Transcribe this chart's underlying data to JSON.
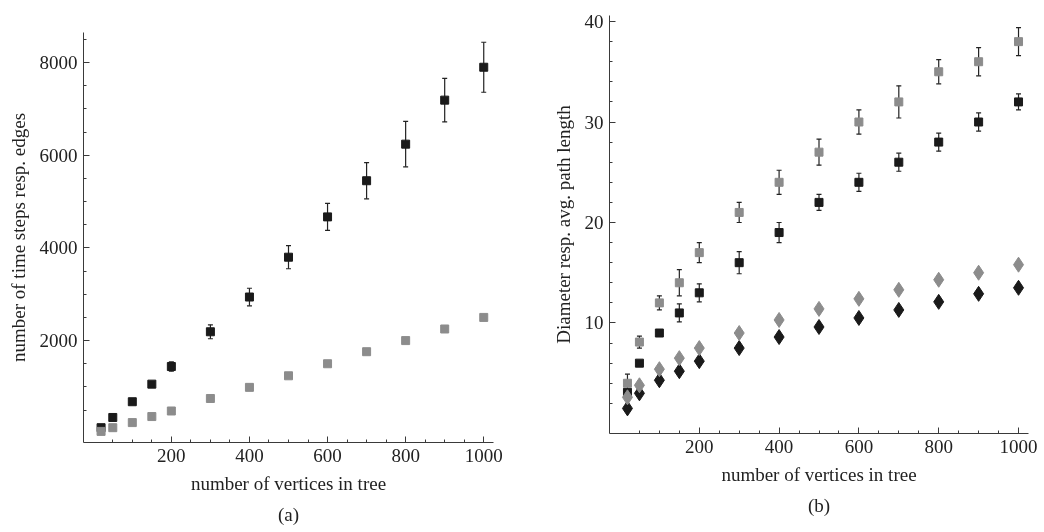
{
  "chart_data": [
    {
      "type": "scatter",
      "xlabel": "number of vertices in tree",
      "ylabel": "number of time steps resp. edges",
      "annotations": [
        "(a)"
      ],
      "grid": false,
      "xlim": [
        -25,
        1025
      ],
      "ylim": [
        -200,
        8650
      ],
      "xticks": [
        {
          "value": 50,
          "label": null
        },
        {
          "value": 100,
          "label": null
        },
        {
          "value": 150,
          "label": null
        },
        200,
        {
          "value": 250,
          "label": null
        },
        {
          "value": 300,
          "label": null
        },
        {
          "value": 350,
          "label": null
        },
        400,
        {
          "value": 450,
          "label": null
        },
        {
          "value": 500,
          "label": null
        },
        {
          "value": 550,
          "label": null
        },
        600,
        {
          "value": 650,
          "label": null
        },
        {
          "value": 700,
          "label": null
        },
        {
          "value": 750,
          "label": null
        },
        800,
        {
          "value": 850,
          "label": null
        },
        {
          "value": 900,
          "label": null
        },
        {
          "value": 950,
          "label": null
        },
        1000
      ],
      "yticks": [
        {
          "value": 500,
          "label": null
        },
        {
          "value": 1000,
          "label": null
        },
        {
          "value": 1500,
          "label": null
        },
        2000,
        {
          "value": 2500,
          "label": null
        },
        {
          "value": 3000,
          "label": null
        },
        {
          "value": 3500,
          "label": null
        },
        4000,
        {
          "value": 4500,
          "label": null
        },
        {
          "value": 5000,
          "label": null
        },
        {
          "value": 5500,
          "label": null
        },
        6000,
        {
          "value": 6500,
          "label": null
        },
        {
          "value": 7000,
          "label": null
        },
        {
          "value": 7500,
          "label": null
        },
        8000,
        {
          "value": 8500,
          "label": null
        }
      ],
      "x": [
        20,
        50,
        100,
        150,
        200,
        300,
        400,
        500,
        600,
        700,
        800,
        900,
        1000
      ],
      "series": [
        {
          "color": "#1a1a1a",
          "marker": "square",
          "values": [
            120,
            340,
            680,
            1060,
            1440,
            2190,
            2940,
            3800,
            4670,
            5450,
            6240,
            7190,
            7900
          ],
          "errors": [
            null,
            null,
            null,
            null,
            100,
            150,
            190,
            250,
            290,
            390,
            490,
            470,
            540
          ]
        },
        {
          "color": "#8c8c8c",
          "marker": "square",
          "values": [
            40,
            120,
            230,
            360,
            480,
            750,
            990,
            1240,
            1500,
            1760,
            2000,
            2250,
            2500
          ]
        }
      ]
    },
    {
      "type": "scatter",
      "xlabel": "number of vertices in tree",
      "ylabel": "Diameter resp. avg. path length",
      "annotations": [
        "(b)"
      ],
      "grid": false,
      "xlim": [
        -25,
        1025
      ],
      "ylim": [
        -1,
        40.6
      ],
      "xticks": [
        {
          "value": 50,
          "label": null
        },
        {
          "value": 100,
          "label": null
        },
        {
          "value": 150,
          "label": null
        },
        200,
        {
          "value": 250,
          "label": null
        },
        {
          "value": 300,
          "label": null
        },
        {
          "value": 350,
          "label": null
        },
        400,
        {
          "value": 450,
          "label": null
        },
        {
          "value": 500,
          "label": null
        },
        {
          "value": 550,
          "label": null
        },
        600,
        {
          "value": 650,
          "label": null
        },
        {
          "value": 700,
          "label": null
        },
        {
          "value": 750,
          "label": null
        },
        800,
        {
          "value": 850,
          "label": null
        },
        {
          "value": 900,
          "label": null
        },
        {
          "value": 950,
          "label": null
        },
        1000
      ],
      "yticks": [
        {
          "value": 2,
          "label": null
        },
        {
          "value": 4,
          "label": null
        },
        {
          "value": 6,
          "label": null
        },
        {
          "value": 8,
          "label": null
        },
        10,
        {
          "value": 12,
          "label": null
        },
        {
          "value": 14,
          "label": null
        },
        {
          "value": 16,
          "label": null
        },
        {
          "value": 18,
          "label": null
        },
        20,
        {
          "value": 22,
          "label": null
        },
        {
          "value": 24,
          "label": null
        },
        {
          "value": 26,
          "label": null
        },
        {
          "value": 28,
          "label": null
        },
        30,
        {
          "value": 32,
          "label": null
        },
        {
          "value": 34,
          "label": null
        },
        {
          "value": 36,
          "label": null
        },
        {
          "value": 38,
          "label": null
        },
        40
      ],
      "x": [
        20,
        50,
        100,
        150,
        200,
        300,
        400,
        500,
        600,
        700,
        800,
        900,
        1000
      ],
      "series": [
        {
          "color": "#1a1a1a",
          "marker": "square",
          "values": [
            3.1,
            6.0,
            9.0,
            11.0,
            13.0,
            16.0,
            19.0,
            22.0,
            24.0,
            26.0,
            28.0,
            30.0,
            32.0
          ],
          "errors": [
            null,
            null,
            null,
            0.9,
            0.9,
            1.1,
            1.0,
            0.8,
            0.9,
            0.9,
            0.9,
            0.9,
            0.8
          ]
        },
        {
          "color": "#8c8c8c",
          "marker": "square",
          "values": [
            4.0,
            8.1,
            12.0,
            14.0,
            17.0,
            21.0,
            24.0,
            27.0,
            30.0,
            32.0,
            35.0,
            36.0,
            38.0
          ],
          "errors": [
            0.9,
            0.6,
            0.7,
            1.3,
            1.0,
            1.0,
            1.2,
            1.3,
            1.2,
            1.6,
            1.2,
            1.4,
            1.4
          ]
        },
        {
          "color": "#1a1a1a",
          "marker": "diamond",
          "values": [
            1.5,
            3.0,
            4.3,
            5.2,
            6.2,
            7.5,
            8.6,
            9.6,
            10.5,
            11.3,
            12.1,
            12.9,
            13.5
          ]
        },
        {
          "color": "#8c8c8c",
          "marker": "diamond",
          "values": [
            2.6,
            3.8,
            5.4,
            6.5,
            7.5,
            9.0,
            10.3,
            11.4,
            12.4,
            13.3,
            14.3,
            15.0,
            15.8
          ]
        }
      ]
    }
  ]
}
